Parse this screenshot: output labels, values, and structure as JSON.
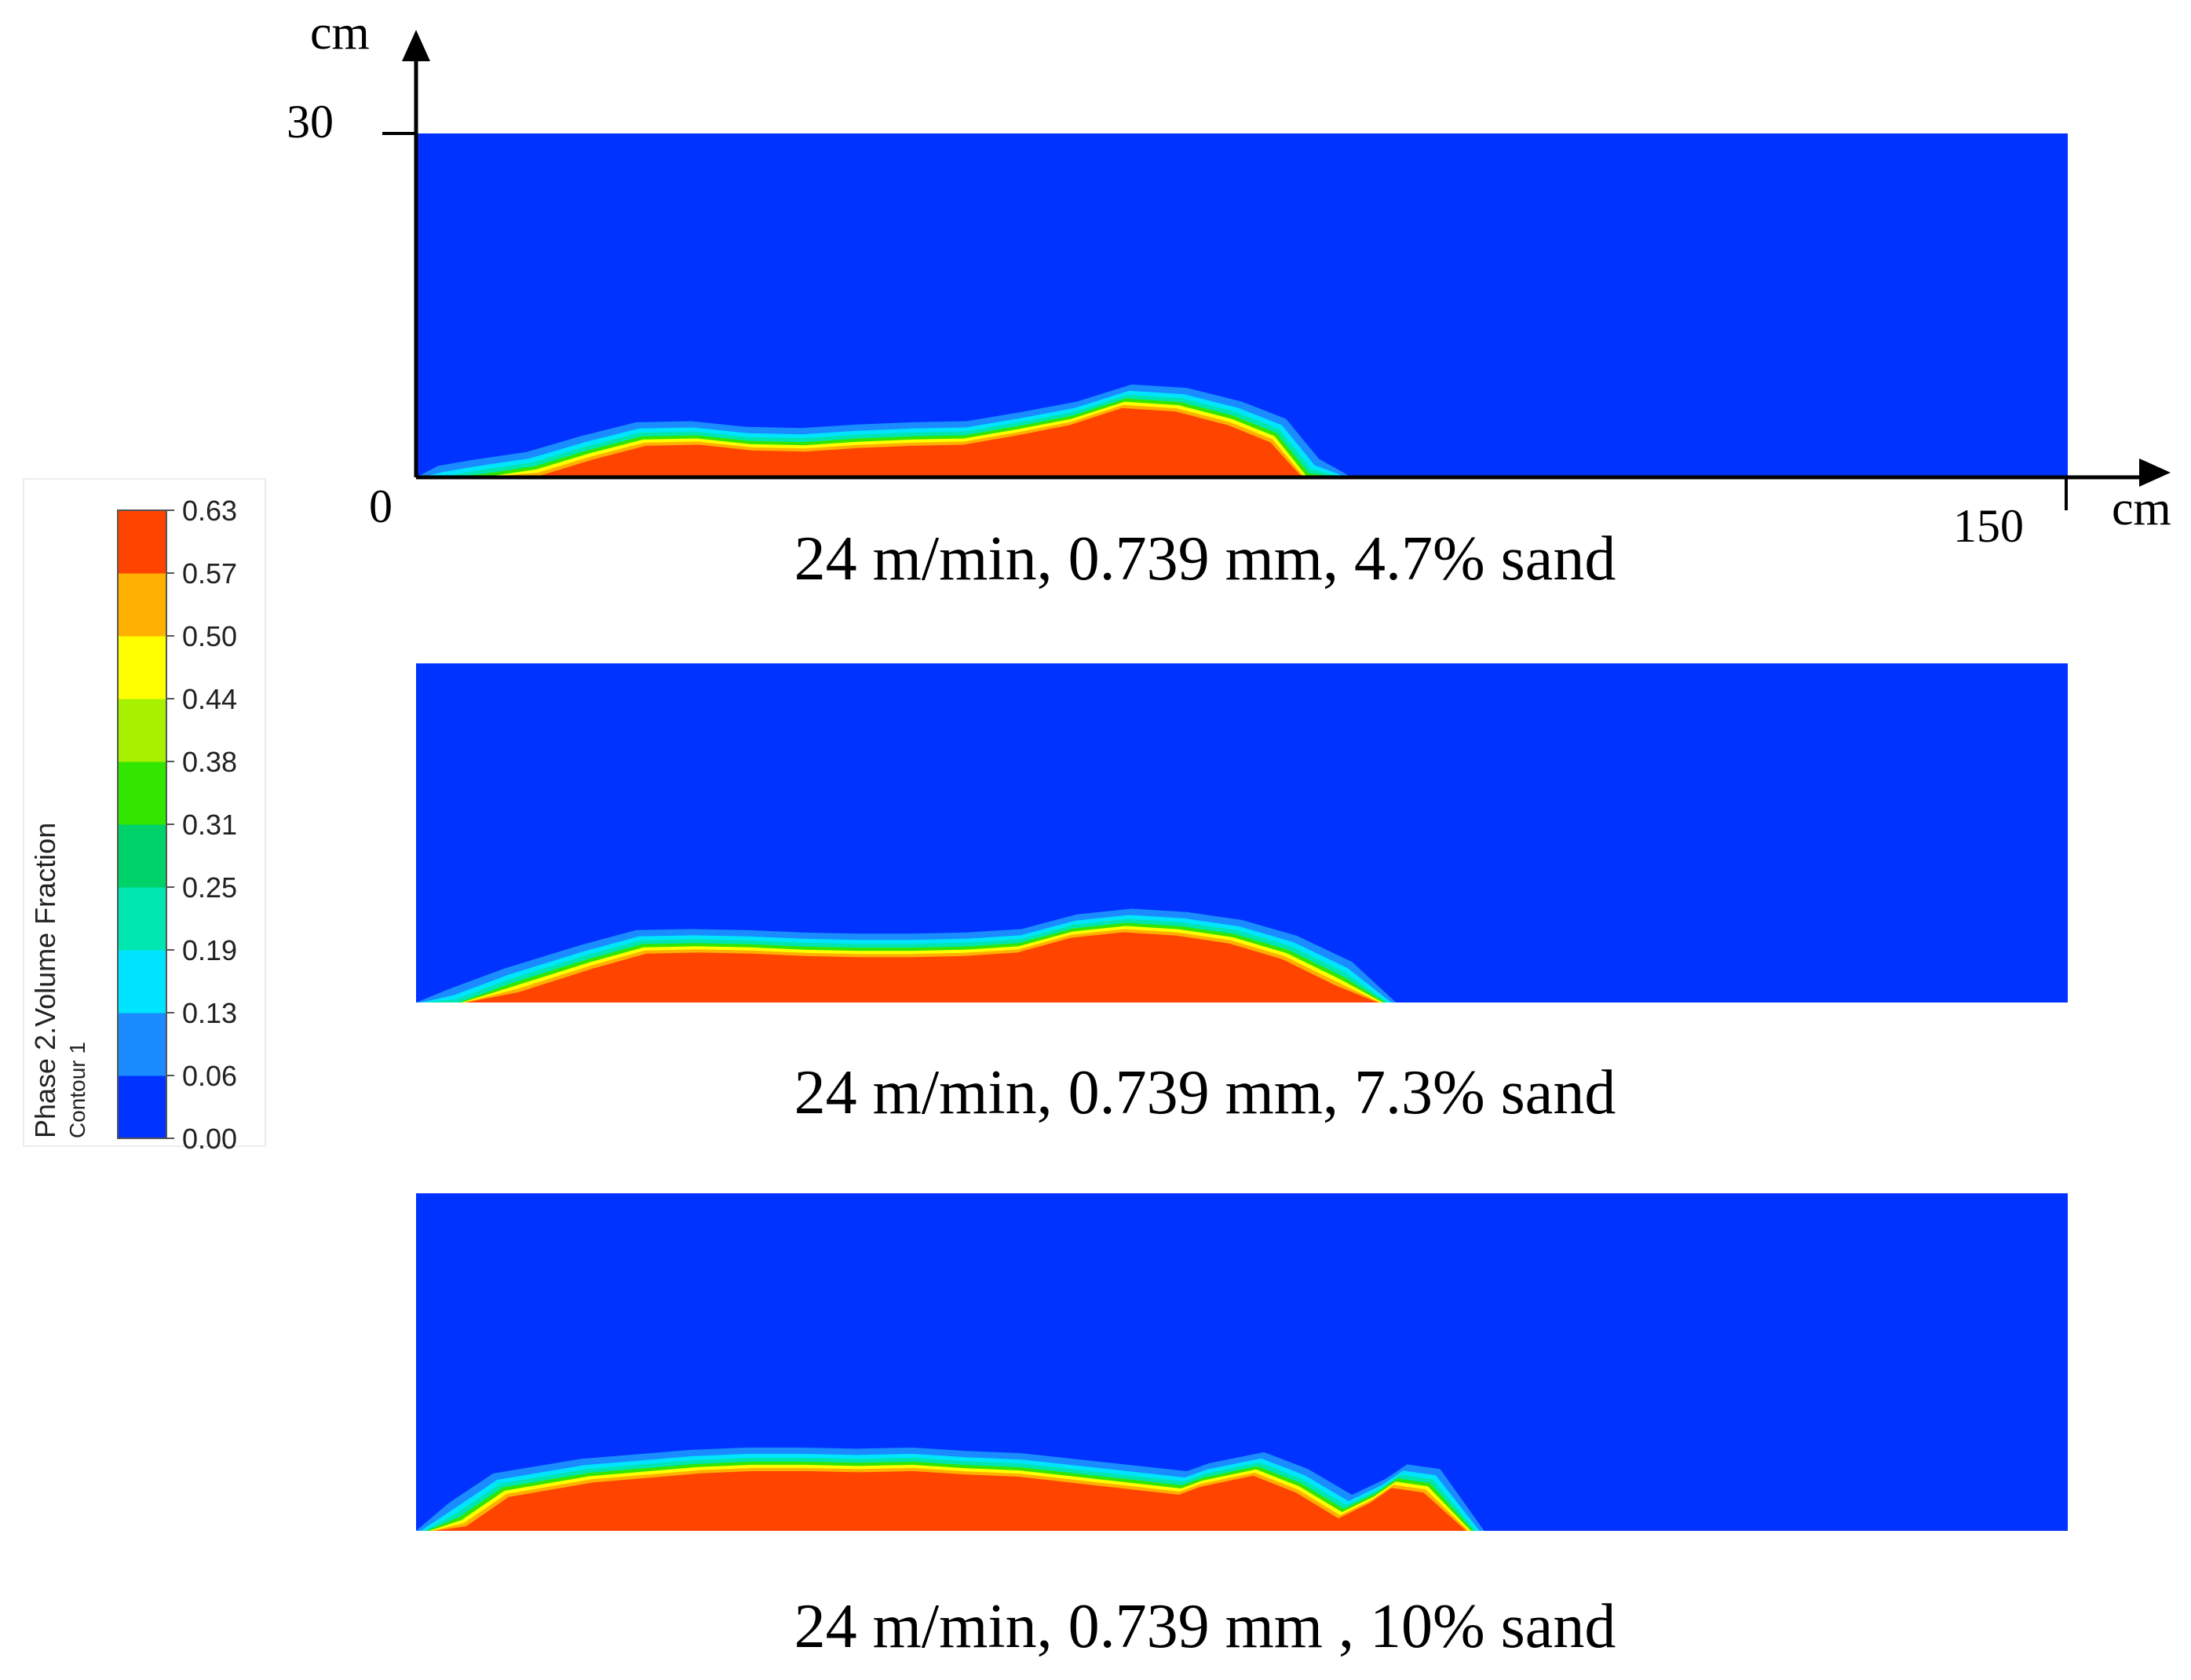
{
  "chart_data": {
    "type": "contour",
    "colorbar": {
      "title": "Phase 2.Volume Fraction",
      "subtitle": "Contour 1",
      "ticks": [
        "0.00",
        "0.06",
        "0.13",
        "0.19",
        "0.25",
        "0.31",
        "0.38",
        "0.44",
        "0.50",
        "0.57",
        "0.63"
      ],
      "colors": [
        "#0033ff",
        "#1a8cff",
        "#00e5ff",
        "#00e6b0",
        "#00d26a",
        "#33e600",
        "#a6f000",
        "#ffff00",
        "#ffb000",
        "#ff4400"
      ]
    },
    "axes": {
      "x": {
        "unit": "cm",
        "origin_label": "0",
        "max_label": "150",
        "range": [
          0,
          150
        ]
      },
      "y": {
        "unit": "cm",
        "max_label": "30",
        "range": [
          0,
          30
        ]
      }
    },
    "panels": [
      {
        "caption": "24 m/min, 0.739 mm, 4.7% sand",
        "deposit_profile": [
          [
            0,
            0
          ],
          [
            2,
            1.0
          ],
          [
            5,
            1.5
          ],
          [
            10,
            2.2
          ],
          [
            15,
            3.6
          ],
          [
            20,
            4.8
          ],
          [
            25,
            4.9
          ],
          [
            30,
            4.4
          ],
          [
            35,
            4.3
          ],
          [
            40,
            4.6
          ],
          [
            45,
            4.8
          ],
          [
            50,
            4.9
          ],
          [
            55,
            5.7
          ],
          [
            60,
            6.6
          ],
          [
            65,
            8.1
          ],
          [
            70,
            7.8
          ],
          [
            75,
            6.6
          ],
          [
            79,
            5.1
          ],
          [
            82,
            1.6
          ],
          [
            85,
            0
          ]
        ]
      },
      {
        "caption": "24 m/min, 0.739 mm, 7.3% sand",
        "deposit_profile": [
          [
            0,
            0
          ],
          [
            3,
            1.2
          ],
          [
            8,
            3.0
          ],
          [
            15,
            5.1
          ],
          [
            20,
            6.4
          ],
          [
            25,
            6.5
          ],
          [
            30,
            6.4
          ],
          [
            35,
            6.2
          ],
          [
            40,
            6.1
          ],
          [
            45,
            6.1
          ],
          [
            50,
            6.2
          ],
          [
            55,
            6.5
          ],
          [
            60,
            7.8
          ],
          [
            65,
            8.3
          ],
          [
            70,
            8.0
          ],
          [
            75,
            7.3
          ],
          [
            80,
            5.9
          ],
          [
            85,
            3.6
          ],
          [
            89,
            0
          ]
        ]
      },
      {
        "caption": "24 m/min, 0.739 mm , 10% sand",
        "deposit_profile": [
          [
            0,
            0
          ],
          [
            3,
            2.5
          ],
          [
            7,
            5.1
          ],
          [
            15,
            6.4
          ],
          [
            25,
            7.2
          ],
          [
            30,
            7.4
          ],
          [
            35,
            7.4
          ],
          [
            40,
            7.3
          ],
          [
            45,
            7.4
          ],
          [
            50,
            7.1
          ],
          [
            55,
            6.9
          ],
          [
            70,
            5.3
          ],
          [
            72,
            6.0
          ],
          [
            77,
            7.0
          ],
          [
            81,
            5.5
          ],
          [
            85,
            3.2
          ],
          [
            88,
            4.6
          ],
          [
            90,
            5.9
          ],
          [
            93,
            5.5
          ],
          [
            97,
            0
          ]
        ]
      }
    ]
  }
}
